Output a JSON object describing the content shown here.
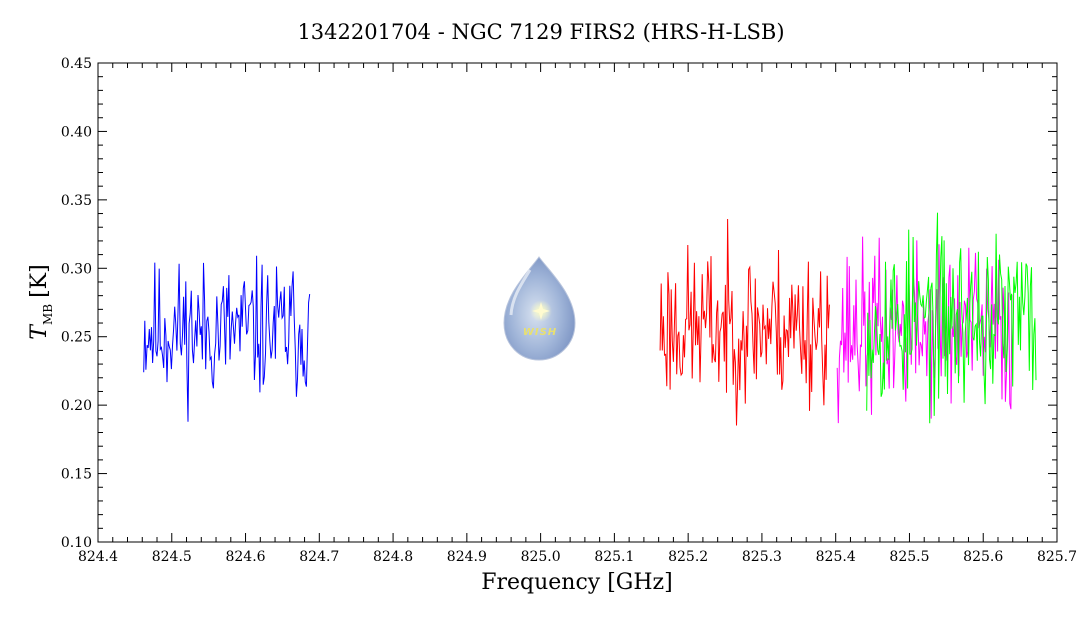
{
  "chart_data": {
    "type": "line",
    "title": "1342201704 - NGC 7129 FIRS2 (HRS-H-LSB)",
    "xlabel": "Frequency [GHz]",
    "ylabel_main": "T",
    "ylabel_sub": "MB",
    "ylabel_unit": "[K]",
    "xlim": [
      824.4,
      825.7
    ],
    "ylim": [
      0.1,
      0.45
    ],
    "xticks": [
      "824.4",
      "824.5",
      "824.6",
      "824.7",
      "824.8",
      "824.9",
      "825.0",
      "825.1",
      "825.2",
      "825.3",
      "825.4",
      "825.5",
      "825.6",
      "825.7"
    ],
    "yticks": [
      "0.10",
      "0.15",
      "0.20",
      "0.25",
      "0.30",
      "0.35",
      "0.40",
      "0.45"
    ],
    "grid": false,
    "logo_text": "WISH",
    "series": [
      {
        "color": "#0000ff",
        "x_range": [
          824.462,
          824.688
        ],
        "mean": 0.255,
        "noise": 0.035,
        "seed": 11,
        "step": 0.0015
      },
      {
        "color": "#ff0000",
        "x_range": [
          825.162,
          825.392
        ],
        "mean": 0.258,
        "noise": 0.04,
        "seed": 23,
        "step": 0.0015
      },
      {
        "color": "#ff00ff",
        "x_range": [
          825.402,
          825.64
        ],
        "mean": 0.255,
        "noise": 0.043,
        "seed": 37,
        "step": 0.0015
      },
      {
        "color": "#00ff00",
        "x_range": [
          825.442,
          825.672
        ],
        "mean": 0.262,
        "noise": 0.045,
        "seed": 53,
        "step": 0.0015
      }
    ]
  }
}
